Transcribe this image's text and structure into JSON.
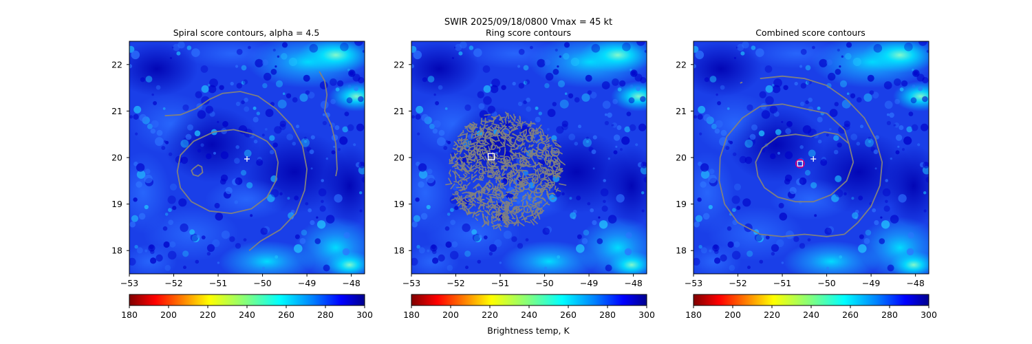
{
  "suptitle": "SWIR  2025/09/18/0800    Vmax = 45 kt",
  "colorbar_label": "Brightness temp, K",
  "colormap": [
    "#7f0000",
    "#ff0000",
    "#ff8000",
    "#ffff00",
    "#80ff80",
    "#00ffff",
    "#0080ff",
    "#0000ff",
    "#00008f"
  ],
  "colors": {
    "contour": "#808080",
    "center_marker": "#ffffff",
    "ring_center_marker": "#ffffff",
    "combined_center_ring": "#e0007a",
    "field_base": "#1a3fe8"
  },
  "chart_data": [
    {
      "type": "heatmap",
      "title": "Spiral score contours, alpha =  4.5",
      "xlim": [
        -53,
        -47.7
      ],
      "ylim": [
        17.5,
        22.5
      ],
      "xticks": [
        -53,
        -52,
        -51,
        -50,
        -49,
        -48
      ],
      "xtick_labels": [
        "−53",
        "−52",
        "−51",
        "−50",
        "−49",
        "−48"
      ],
      "yticks": [
        18,
        19,
        20,
        21,
        22
      ],
      "ytick_labels": [
        "18",
        "19",
        "20",
        "21",
        "22"
      ],
      "colorbar": {
        "range": [
          180,
          300
        ],
        "ticks": [
          180,
          200,
          220,
          240,
          260,
          280,
          300
        ],
        "tick_labels": [
          "180",
          "200",
          "220",
          "240",
          "260",
          "280",
          "300"
        ]
      },
      "center_marker": {
        "x": -50.35,
        "y": 19.97
      },
      "contours": [
        [
          [
            -51.55,
            19.77
          ],
          [
            -51.45,
            19.84
          ],
          [
            -51.37,
            19.8
          ],
          [
            -51.35,
            19.68
          ],
          [
            -51.45,
            19.6
          ],
          [
            -51.56,
            19.63
          ],
          [
            -51.6,
            19.72
          ],
          [
            -51.55,
            19.77
          ]
        ],
        [
          [
            -49.65,
            19.9
          ],
          [
            -49.72,
            20.15
          ],
          [
            -49.9,
            20.35
          ],
          [
            -50.2,
            20.5
          ],
          [
            -50.65,
            20.6
          ],
          [
            -51.1,
            20.55
          ],
          [
            -51.55,
            20.35
          ],
          [
            -51.85,
            20.05
          ],
          [
            -51.92,
            19.7
          ],
          [
            -51.85,
            19.35
          ],
          [
            -51.6,
            19.05
          ],
          [
            -51.2,
            18.85
          ],
          [
            -50.7,
            18.8
          ],
          [
            -50.25,
            18.9
          ],
          [
            -49.9,
            19.15
          ],
          [
            -49.7,
            19.5
          ],
          [
            -49.65,
            19.9
          ]
        ],
        [
          [
            -52.2,
            20.9
          ],
          [
            -51.85,
            20.92
          ],
          [
            -51.5,
            21.05
          ],
          [
            -51.2,
            21.25
          ],
          [
            -50.9,
            21.38
          ],
          [
            -50.5,
            21.42
          ],
          [
            -50.1,
            21.32
          ],
          [
            -49.7,
            21.05
          ],
          [
            -49.35,
            20.7
          ],
          [
            -49.1,
            20.25
          ],
          [
            -49.0,
            19.75
          ],
          [
            -49.05,
            19.3
          ],
          [
            -49.25,
            18.8
          ],
          [
            -49.6,
            18.45
          ],
          [
            -50.05,
            18.2
          ],
          [
            -50.3,
            18.0
          ]
        ],
        [
          [
            -48.72,
            21.85
          ],
          [
            -48.6,
            21.65
          ],
          [
            -48.55,
            21.35
          ],
          [
            -48.6,
            21.0
          ],
          [
            -48.45,
            20.7
          ],
          [
            -48.35,
            20.3
          ],
          [
            -48.32,
            19.75
          ],
          [
            -48.35,
            19.6
          ]
        ]
      ]
    },
    {
      "type": "heatmap",
      "title": "Ring score contours",
      "xlim": [
        -53,
        -47.7
      ],
      "ylim": [
        17.5,
        22.5
      ],
      "xticks": [
        -53,
        -52,
        -51,
        -50,
        -49,
        -48
      ],
      "xtick_labels": [
        "−53",
        "−52",
        "−51",
        "−50",
        "−49",
        "−48"
      ],
      "yticks": [
        18,
        19,
        20,
        21,
        22
      ],
      "ytick_labels": [
        "18",
        "19",
        "20",
        "21",
        "22"
      ],
      "colorbar": {
        "range": [
          180,
          300
        ],
        "ticks": [
          180,
          200,
          220,
          240,
          260,
          280,
          300
        ],
        "tick_labels": [
          "180",
          "200",
          "220",
          "240",
          "260",
          "280",
          "300"
        ]
      },
      "ring_center_marker": {
        "x": -51.2,
        "y": 20.02
      },
      "ring_region": {
        "center": [
          -50.9,
          19.75
        ],
        "radius_deg": 1.3
      },
      "contours": []
    },
    {
      "type": "heatmap",
      "title": "Combined score contours",
      "xlim": [
        -53,
        -47.7
      ],
      "ylim": [
        17.5,
        22.5
      ],
      "xticks": [
        -53,
        -52,
        -51,
        -50,
        -49,
        -48
      ],
      "xtick_labels": [
        "−53",
        "−52",
        "−51",
        "−50",
        "−49",
        "−48"
      ],
      "yticks": [
        18,
        19,
        20,
        21,
        22
      ],
      "ytick_labels": [
        "18",
        "19",
        "20",
        "21",
        "22"
      ],
      "colorbar": {
        "range": [
          180,
          300
        ],
        "ticks": [
          180,
          200,
          220,
          240,
          260,
          280,
          300
        ],
        "tick_labels": [
          "180",
          "200",
          "220",
          "240",
          "260",
          "280",
          "300"
        ]
      },
      "center_marker": {
        "x": -50.3,
        "y": 19.97
      },
      "combined_center": {
        "x": -50.6,
        "y": 19.87
      },
      "contours": [
        [
          [
            -49.4,
            19.9
          ],
          [
            -49.5,
            20.3
          ],
          [
            -49.75,
            20.5
          ],
          [
            -50.05,
            20.55
          ],
          [
            -50.35,
            20.45
          ],
          [
            -50.7,
            20.5
          ],
          [
            -51.1,
            20.45
          ],
          [
            -51.45,
            20.2
          ],
          [
            -51.6,
            19.9
          ],
          [
            -51.55,
            19.6
          ],
          [
            -51.4,
            19.35
          ],
          [
            -51.1,
            19.15
          ],
          [
            -50.7,
            19.05
          ],
          [
            -50.3,
            19.05
          ],
          [
            -49.9,
            19.2
          ],
          [
            -49.55,
            19.5
          ],
          [
            -49.4,
            19.9
          ]
        ],
        [
          [
            -51.5,
            21.7
          ],
          [
            -51.0,
            21.75
          ],
          [
            -50.5,
            21.7
          ],
          [
            -50.0,
            21.55
          ],
          [
            -49.55,
            21.25
          ],
          [
            -49.15,
            20.85
          ],
          [
            -48.9,
            20.4
          ],
          [
            -48.75,
            19.9
          ],
          [
            -48.8,
            19.4
          ],
          [
            -49.0,
            18.95
          ],
          [
            -49.3,
            18.6
          ],
          [
            -49.6,
            18.35
          ]
        ],
        [
          [
            -49.6,
            18.35
          ],
          [
            -50.0,
            18.3
          ],
          [
            -50.5,
            18.35
          ],
          [
            -51.0,
            18.3
          ],
          [
            -51.5,
            18.35
          ],
          [
            -52.0,
            18.6
          ],
          [
            -52.3,
            19.0
          ],
          [
            -52.42,
            19.5
          ],
          [
            -52.4,
            20.0
          ],
          [
            -52.25,
            20.45
          ],
          [
            -51.9,
            20.85
          ],
          [
            -51.5,
            21.1
          ],
          [
            -51.0,
            21.15
          ],
          [
            -50.5,
            21.05
          ],
          [
            -50.0,
            20.95
          ],
          [
            -49.6,
            20.6
          ],
          [
            -49.5,
            20.3
          ]
        ],
        [
          [
            -51.95,
            21.6
          ],
          [
            -51.9,
            21.62
          ]
        ]
      ]
    }
  ]
}
